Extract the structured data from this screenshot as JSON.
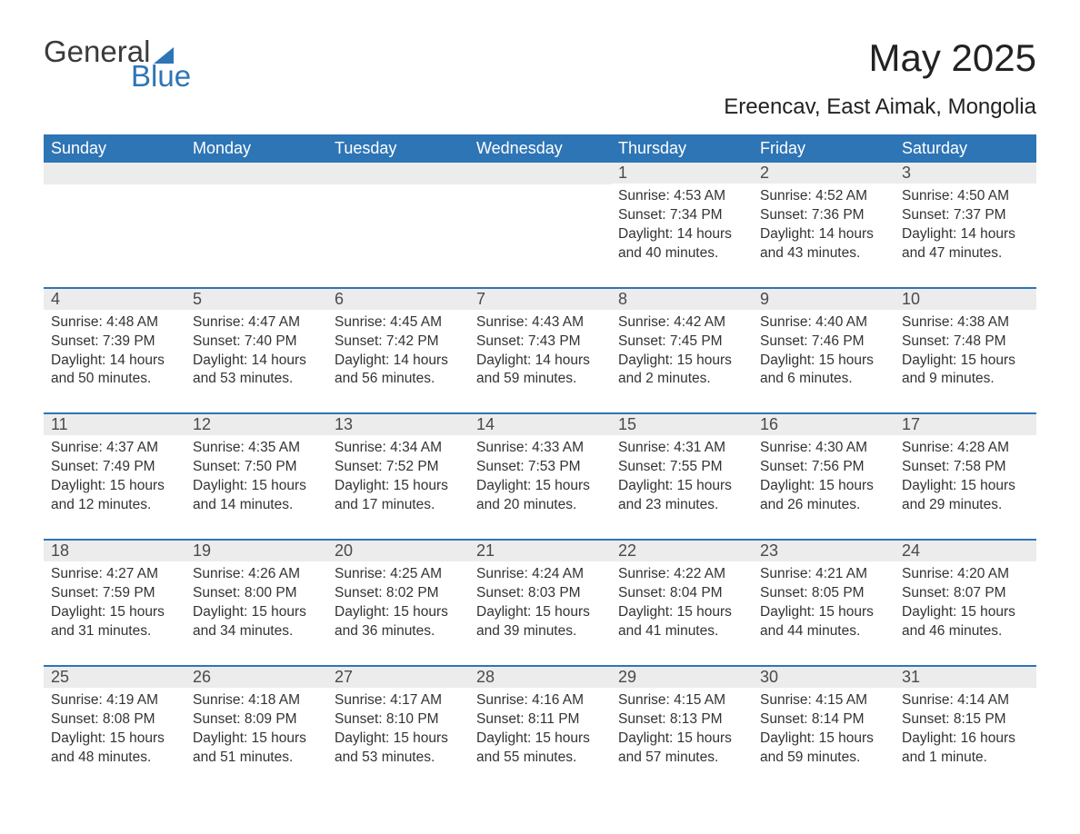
{
  "brand": {
    "word1": "General",
    "word2": "Blue",
    "accent": "#2e75b6"
  },
  "title": "May 2025",
  "location": "Ereencav, East Aimak, Mongolia",
  "colors": {
    "header_bg": "#2e75b6",
    "header_text": "#ffffff",
    "daynum_bg": "#ececec",
    "row_border": "#2e75b6",
    "body_text": "#333333",
    "page_bg": "#ffffff"
  },
  "weekdays": [
    "Sunday",
    "Monday",
    "Tuesday",
    "Wednesday",
    "Thursday",
    "Friday",
    "Saturday"
  ],
  "weeks": [
    [
      null,
      null,
      null,
      null,
      {
        "n": "1",
        "sunrise": "4:53 AM",
        "sunset": "7:34 PM",
        "daylight": "14 hours and 40 minutes."
      },
      {
        "n": "2",
        "sunrise": "4:52 AM",
        "sunset": "7:36 PM",
        "daylight": "14 hours and 43 minutes."
      },
      {
        "n": "3",
        "sunrise": "4:50 AM",
        "sunset": "7:37 PM",
        "daylight": "14 hours and 47 minutes."
      }
    ],
    [
      {
        "n": "4",
        "sunrise": "4:48 AM",
        "sunset": "7:39 PM",
        "daylight": "14 hours and 50 minutes."
      },
      {
        "n": "5",
        "sunrise": "4:47 AM",
        "sunset": "7:40 PM",
        "daylight": "14 hours and 53 minutes."
      },
      {
        "n": "6",
        "sunrise": "4:45 AM",
        "sunset": "7:42 PM",
        "daylight": "14 hours and 56 minutes."
      },
      {
        "n": "7",
        "sunrise": "4:43 AM",
        "sunset": "7:43 PM",
        "daylight": "14 hours and 59 minutes."
      },
      {
        "n": "8",
        "sunrise": "4:42 AM",
        "sunset": "7:45 PM",
        "daylight": "15 hours and 2 minutes."
      },
      {
        "n": "9",
        "sunrise": "4:40 AM",
        "sunset": "7:46 PM",
        "daylight": "15 hours and 6 minutes."
      },
      {
        "n": "10",
        "sunrise": "4:38 AM",
        "sunset": "7:48 PM",
        "daylight": "15 hours and 9 minutes."
      }
    ],
    [
      {
        "n": "11",
        "sunrise": "4:37 AM",
        "sunset": "7:49 PM",
        "daylight": "15 hours and 12 minutes."
      },
      {
        "n": "12",
        "sunrise": "4:35 AM",
        "sunset": "7:50 PM",
        "daylight": "15 hours and 14 minutes."
      },
      {
        "n": "13",
        "sunrise": "4:34 AM",
        "sunset": "7:52 PM",
        "daylight": "15 hours and 17 minutes."
      },
      {
        "n": "14",
        "sunrise": "4:33 AM",
        "sunset": "7:53 PM",
        "daylight": "15 hours and 20 minutes."
      },
      {
        "n": "15",
        "sunrise": "4:31 AM",
        "sunset": "7:55 PM",
        "daylight": "15 hours and 23 minutes."
      },
      {
        "n": "16",
        "sunrise": "4:30 AM",
        "sunset": "7:56 PM",
        "daylight": "15 hours and 26 minutes."
      },
      {
        "n": "17",
        "sunrise": "4:28 AM",
        "sunset": "7:58 PM",
        "daylight": "15 hours and 29 minutes."
      }
    ],
    [
      {
        "n": "18",
        "sunrise": "4:27 AM",
        "sunset": "7:59 PM",
        "daylight": "15 hours and 31 minutes."
      },
      {
        "n": "19",
        "sunrise": "4:26 AM",
        "sunset": "8:00 PM",
        "daylight": "15 hours and 34 minutes."
      },
      {
        "n": "20",
        "sunrise": "4:25 AM",
        "sunset": "8:02 PM",
        "daylight": "15 hours and 36 minutes."
      },
      {
        "n": "21",
        "sunrise": "4:24 AM",
        "sunset": "8:03 PM",
        "daylight": "15 hours and 39 minutes."
      },
      {
        "n": "22",
        "sunrise": "4:22 AM",
        "sunset": "8:04 PM",
        "daylight": "15 hours and 41 minutes."
      },
      {
        "n": "23",
        "sunrise": "4:21 AM",
        "sunset": "8:05 PM",
        "daylight": "15 hours and 44 minutes."
      },
      {
        "n": "24",
        "sunrise": "4:20 AM",
        "sunset": "8:07 PM",
        "daylight": "15 hours and 46 minutes."
      }
    ],
    [
      {
        "n": "25",
        "sunrise": "4:19 AM",
        "sunset": "8:08 PM",
        "daylight": "15 hours and 48 minutes."
      },
      {
        "n": "26",
        "sunrise": "4:18 AM",
        "sunset": "8:09 PM",
        "daylight": "15 hours and 51 minutes."
      },
      {
        "n": "27",
        "sunrise": "4:17 AM",
        "sunset": "8:10 PM",
        "daylight": "15 hours and 53 minutes."
      },
      {
        "n": "28",
        "sunrise": "4:16 AM",
        "sunset": "8:11 PM",
        "daylight": "15 hours and 55 minutes."
      },
      {
        "n": "29",
        "sunrise": "4:15 AM",
        "sunset": "8:13 PM",
        "daylight": "15 hours and 57 minutes."
      },
      {
        "n": "30",
        "sunrise": "4:15 AM",
        "sunset": "8:14 PM",
        "daylight": "15 hours and 59 minutes."
      },
      {
        "n": "31",
        "sunrise": "4:14 AM",
        "sunset": "8:15 PM",
        "daylight": "16 hours and 1 minute."
      }
    ]
  ],
  "labels": {
    "sunrise": "Sunrise: ",
    "sunset": "Sunset: ",
    "daylight": "Daylight: "
  }
}
